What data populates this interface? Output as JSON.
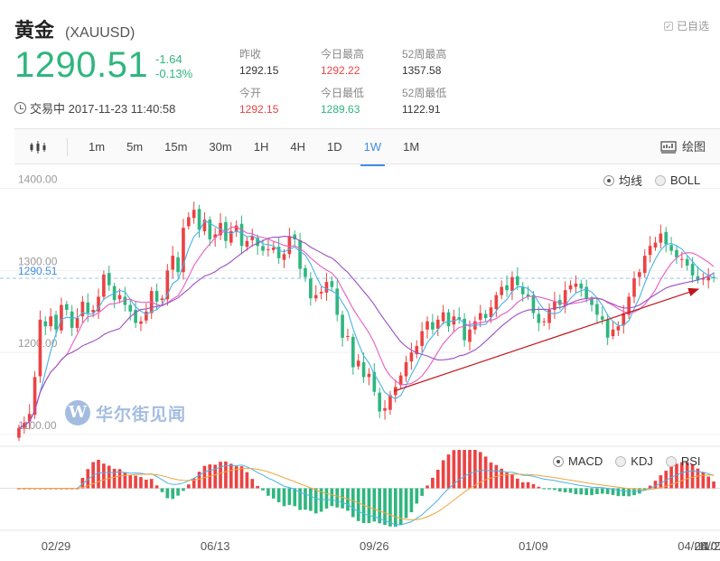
{
  "header": {
    "title": "黄金",
    "symbol": "(XAUUSD)",
    "watch_label": "已自选",
    "price": "1290.51",
    "change": "-1.64",
    "change_pct": "-0.13%",
    "status": "交易中 2017-11-23 11:40:58",
    "stats": [
      {
        "label": "昨收",
        "value": "1292.15",
        "tone": "neutral"
      },
      {
        "label": "今日最高",
        "value": "1292.22",
        "tone": "up"
      },
      {
        "label": "52周最高",
        "value": "1357.58",
        "tone": "neutral"
      },
      {
        "label": "今开",
        "value": "1292.15",
        "tone": "up"
      },
      {
        "label": "今日最低",
        "value": "1289.63",
        "tone": "down"
      },
      {
        "label": "52周最低",
        "value": "1122.91",
        "tone": "neutral"
      }
    ]
  },
  "toolbar": {
    "periods": [
      "1m",
      "5m",
      "15m",
      "30m",
      "1H",
      "4H",
      "1D",
      "1W",
      "1M"
    ],
    "active_period": "1W",
    "draw_label": "绘图"
  },
  "legend_main": {
    "items": [
      "均线",
      "BOLL"
    ],
    "selected": "均线"
  },
  "legend_sub": {
    "items": [
      "MACD",
      "KDJ",
      "RSI"
    ],
    "selected": "MACD"
  },
  "watermark": {
    "logo": "W",
    "text": "华尔街见闻"
  },
  "colors": {
    "up": "#ec4242",
    "down": "#2fb67f",
    "ma_fast": "#47b3e8",
    "ma_mid": "#e85cc6",
    "ma_slow": "#9b4fc4",
    "arrow": "#c0161b",
    "price_line": "#3f8de6"
  },
  "chart_data": {
    "type": "candlestick",
    "y_ticks": [
      "1400.00",
      "1300.00",
      "1200.00",
      "1100.00"
    ],
    "y_tick_values": [
      1400,
      1300,
      1200,
      1100
    ],
    "ylim": [
      1090,
      1425
    ],
    "current_price_label": "1290.51",
    "current_price": 1290.51,
    "x_tick_labels": [
      "02/29",
      "06/13",
      "09/26",
      "01/09",
      "04/24",
      "08/07",
      "11/2"
    ],
    "x_tick_index": [
      7,
      37,
      67,
      97,
      127,
      157,
      188
    ],
    "period": "1W",
    "closes": [
      1108,
      1114,
      1125,
      1170,
      1240,
      1232,
      1244,
      1228,
      1258,
      1252,
      1230,
      1242,
      1262,
      1248,
      1252,
      1268,
      1295,
      1282,
      1264,
      1270,
      1258,
      1250,
      1236,
      1238,
      1250,
      1275,
      1262,
      1266,
      1300,
      1318,
      1298,
      1352,
      1365,
      1374,
      1350,
      1362,
      1338,
      1344,
      1358,
      1336,
      1348,
      1355,
      1330,
      1336,
      1342,
      1330,
      1324,
      1326,
      1328,
      1315,
      1320,
      1342,
      1338,
      1302,
      1292,
      1266,
      1270,
      1274,
      1286,
      1280,
      1246,
      1218,
      1220,
      1182,
      1190,
      1170,
      1174,
      1152,
      1128,
      1132,
      1148,
      1158,
      1172,
      1188,
      1200,
      1208,
      1226,
      1238,
      1228,
      1240,
      1249,
      1232,
      1244,
      1240,
      1215,
      1228,
      1238,
      1248,
      1242,
      1255,
      1270,
      1280,
      1276,
      1292,
      1282,
      1271,
      1268,
      1248,
      1236,
      1238,
      1252,
      1262,
      1258,
      1276,
      1282,
      1284,
      1278,
      1266,
      1258,
      1246,
      1240,
      1218,
      1228,
      1232,
      1248,
      1268,
      1290,
      1298,
      1318,
      1330,
      1334,
      1345,
      1332,
      1324,
      1316,
      1314,
      1306,
      1294,
      1288,
      1290,
      1292,
      1290.51
    ]
  }
}
